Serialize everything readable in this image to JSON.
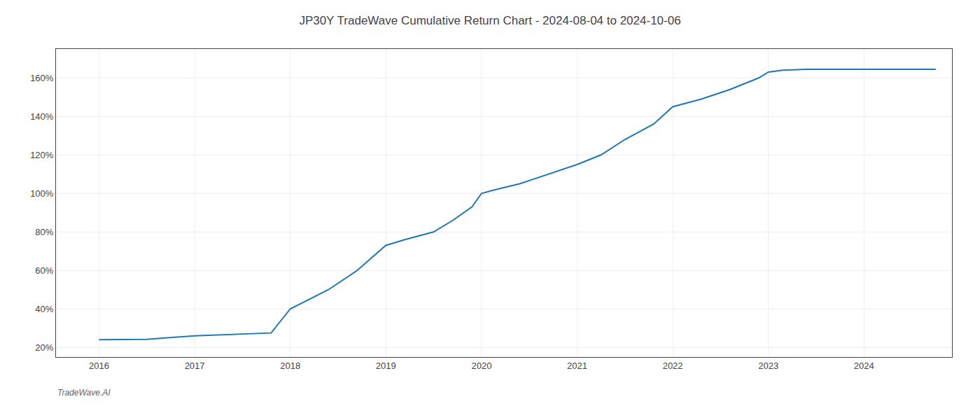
{
  "chart_data": {
    "type": "line",
    "title": "JP30Y TradeWave Cumulative Return Chart - 2024-08-04 to 2024-10-06",
    "annotations": [
      "TradeWave.AI"
    ],
    "x": [
      2016.0,
      2016.5,
      2017.0,
      2017.5,
      2017.8,
      2018.0,
      2018.4,
      2018.7,
      2019.0,
      2019.2,
      2019.5,
      2019.7,
      2019.9,
      2020.0,
      2020.15,
      2020.4,
      2020.7,
      2021.0,
      2021.25,
      2021.5,
      2021.8,
      2022.0,
      2022.3,
      2022.6,
      2022.9,
      2023.0,
      2023.15,
      2023.4,
      2023.7,
      2024.0,
      2024.3,
      2024.75
    ],
    "values": [
      24.0,
      24.2,
      26.0,
      27.0,
      27.5,
      40.0,
      50.0,
      60.0,
      73.0,
      76.0,
      80.0,
      86.0,
      93.0,
      100.0,
      102.0,
      105.0,
      110.0,
      115.0,
      120.0,
      128.0,
      136.0,
      145.0,
      149.0,
      154.0,
      160.0,
      163.0,
      164.0,
      164.5,
      164.5,
      164.5,
      164.5,
      164.5
    ],
    "xlim": [
      2015.55,
      2024.92
    ],
    "ylim": [
      15,
      175
    ],
    "xticks": [
      2016,
      2017,
      2018,
      2019,
      2020,
      2021,
      2022,
      2023,
      2024
    ],
    "yticks": [
      {
        "value": 20,
        "label": "20%"
      },
      {
        "value": 40,
        "label": "40%"
      },
      {
        "value": 60,
        "label": "60%"
      },
      {
        "value": 80,
        "label": "80%"
      },
      {
        "value": 100,
        "label": "100%"
      },
      {
        "value": 120,
        "label": "120%"
      },
      {
        "value": 140,
        "label": "140%"
      },
      {
        "value": 160,
        "label": "160%"
      }
    ],
    "grid": true
  }
}
